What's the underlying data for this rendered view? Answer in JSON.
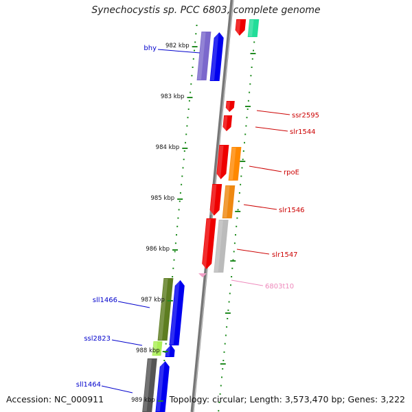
{
  "title": "Synechocystis sp. PCC 6803, complete genome",
  "footer": {
    "accession": "Accession: NC_000911",
    "summary": "Topology: circular; Length: 3,573,470 bp; Genes: 3,222"
  },
  "colors": {
    "axis": "#777777",
    "tick": "#228b22",
    "left_label": "#0000cc",
    "right_label": "#cc0000",
    "rna_label": "#ee88bb"
  },
  "ticks": [
    {
      "label": "982 kbp"
    },
    {
      "label": "983 kbp"
    },
    {
      "label": "984 kbp"
    },
    {
      "label": "985 kbp"
    },
    {
      "label": "986 kbp"
    },
    {
      "label": "987 kbp"
    },
    {
      "label": "988 kbp"
    },
    {
      "label": "989 kbp"
    }
  ],
  "genes": [
    {
      "name": "bhy",
      "strand": "left",
      "color": "#0000ee",
      "label_color": "#0000cc"
    },
    {
      "name": "ssr2595",
      "strand": "right",
      "color": "#ee0000",
      "label_color": "#cc0000"
    },
    {
      "name": "slr1544",
      "strand": "right",
      "color": "#ee0000",
      "label_color": "#cc0000"
    },
    {
      "name": "rpoE",
      "strand": "right",
      "color": "#ee0000",
      "label_color": "#cc0000"
    },
    {
      "name": "slr1546",
      "strand": "right",
      "color": "#ee0000",
      "label_color": "#cc0000"
    },
    {
      "name": "slr1547",
      "strand": "right",
      "color": "#ee0000",
      "label_color": "#cc0000"
    },
    {
      "name": "6803t10",
      "strand": "right",
      "color": "#ee88bb",
      "label_color": "#ee88bb"
    },
    {
      "name": "sll1466",
      "strand": "left",
      "color": "#0000ee",
      "label_color": "#0000cc"
    },
    {
      "name": "ssl2823",
      "strand": "left",
      "color": "#0000ee",
      "label_color": "#0000cc"
    },
    {
      "name": "sll1464",
      "strand": "left",
      "color": "#0000ee",
      "label_color": "#0000cc"
    }
  ]
}
